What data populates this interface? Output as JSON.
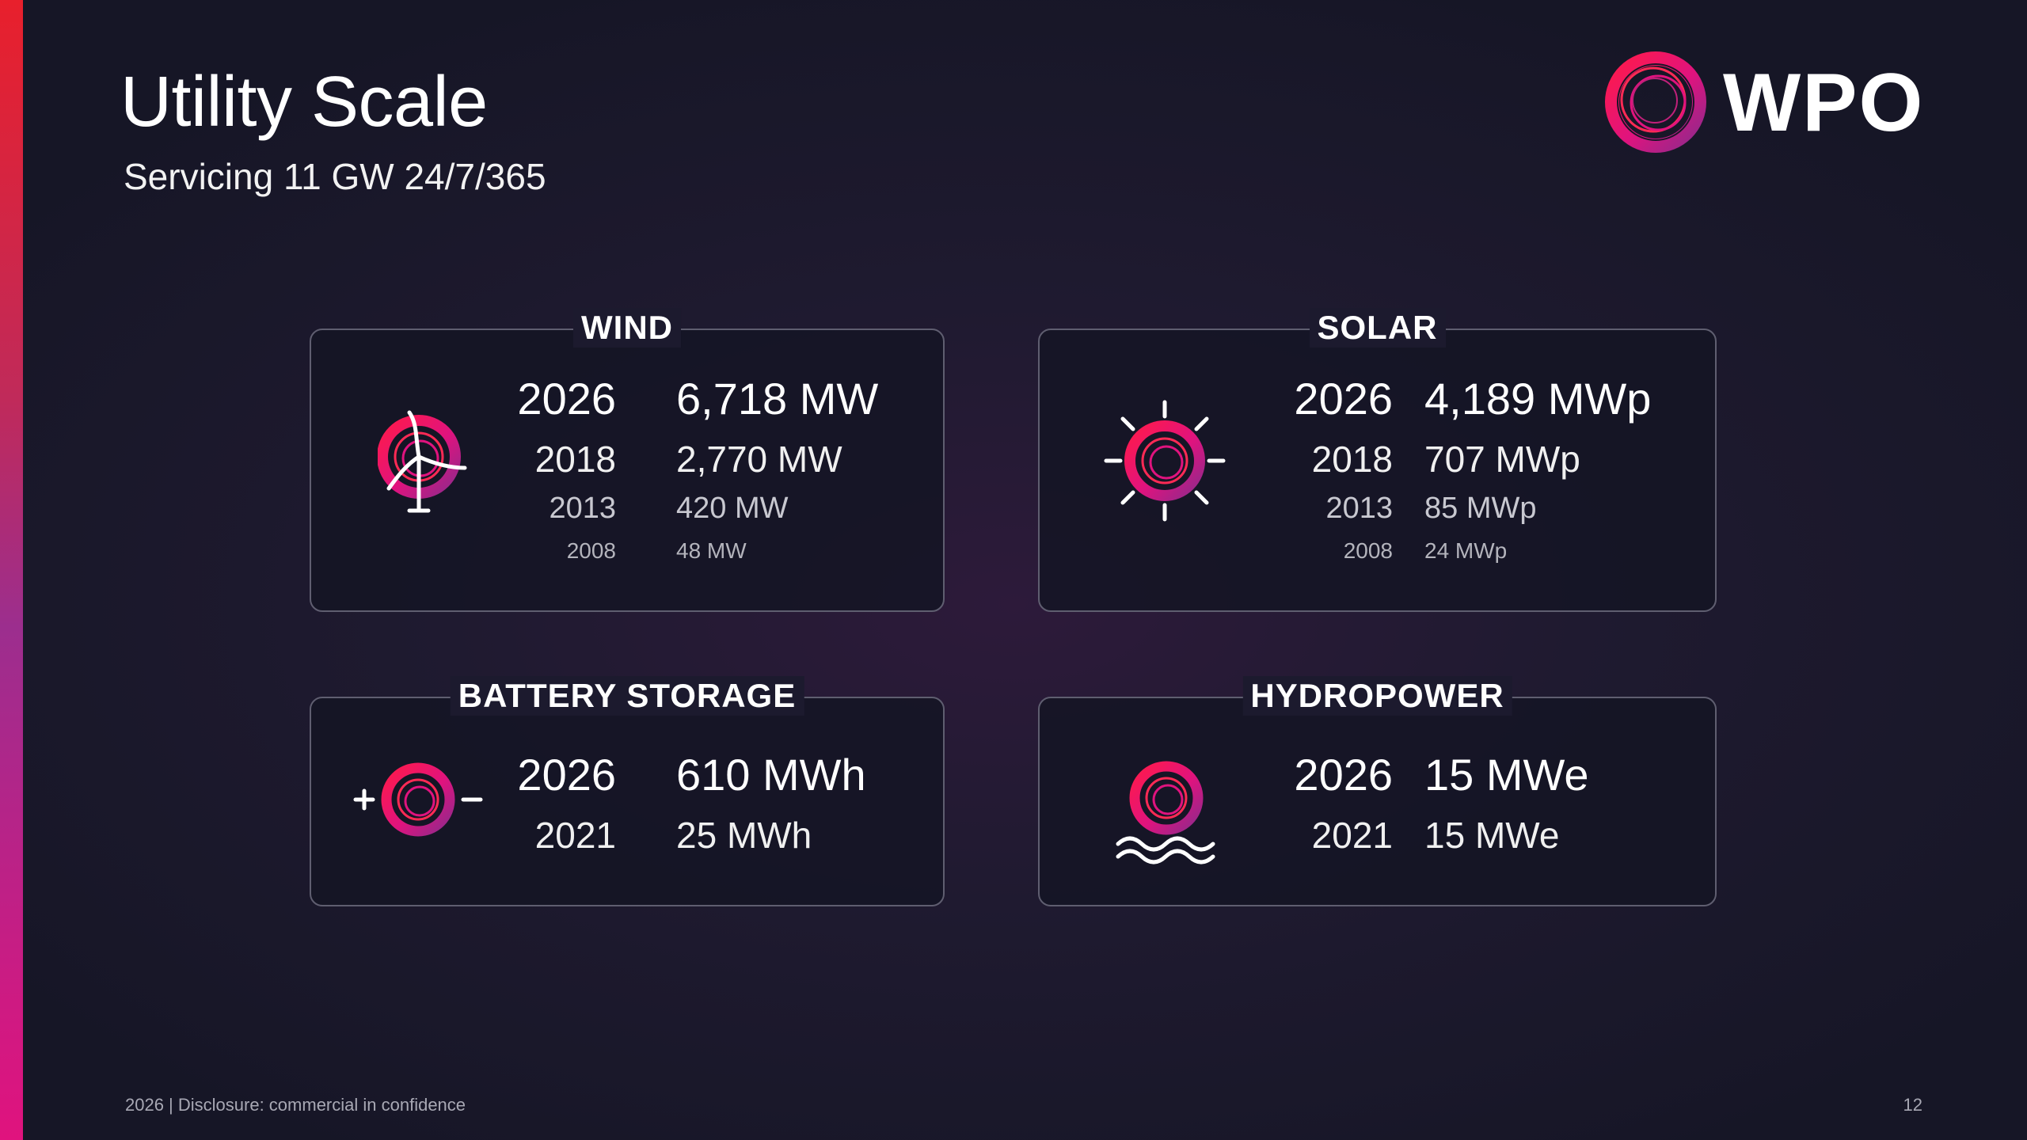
{
  "header": {
    "title": "Utility Scale",
    "subtitle": "Servicing 11 GW 24/7/365"
  },
  "logo": {
    "text": "WPO",
    "icon": "swirl-ring-logo-icon"
  },
  "colors": {
    "accent_red": "#e8202c",
    "accent_magenta": "#e0137e",
    "accent_purple": "#9c2e8e"
  },
  "cards": {
    "wind": {
      "label": "WIND",
      "icon": "wind-turbine-icon",
      "rows": [
        {
          "year": "2026",
          "value": "6,718 MW"
        },
        {
          "year": "2018",
          "value": "2,770 MW"
        },
        {
          "year": "2013",
          "value": "420 MW"
        },
        {
          "year": "2008",
          "value": "48 MW"
        }
      ]
    },
    "solar": {
      "label": "SOLAR",
      "icon": "sun-icon",
      "rows": [
        {
          "year": "2026",
          "value": "4,189 MWp"
        },
        {
          "year": "2018",
          "value": "707 MWp"
        },
        {
          "year": "2013",
          "value": "85 MWp"
        },
        {
          "year": "2008",
          "value": "24 MWp"
        }
      ]
    },
    "battery": {
      "label": "BATTERY STORAGE",
      "icon": "battery-icon",
      "rows": [
        {
          "year": "2026",
          "value": "610 MWh"
        },
        {
          "year": "2021",
          "value": "25 MWh"
        }
      ]
    },
    "hydro": {
      "label": "HYDROPOWER",
      "icon": "water-waves-icon",
      "rows": [
        {
          "year": "2026",
          "value": "15 MWe"
        },
        {
          "year": "2021",
          "value": "15 MWe"
        }
      ]
    }
  },
  "footer": {
    "note": "2026 | Disclosure: commercial in confidence",
    "page_number": "12"
  }
}
